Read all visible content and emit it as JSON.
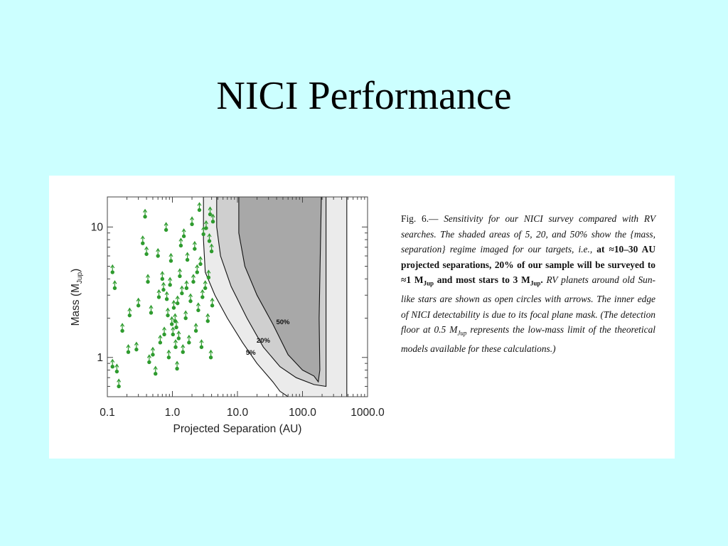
{
  "title": "NICI Performance",
  "caption": {
    "lead": "Fig.  6.— ",
    "s1": "Sensitivity for our NICI survey compared with RV searches. The shaded areas of 5, 20, and 50% show the {mass, separation} regime imaged for our targets, i.e.,",
    "s2": " at ≈10–30 AU projected separations, 20% of our sample will be surveyed to ≈1 M",
    "sub1": "Jup",
    "s3": " and most stars to 3 M",
    "sub2": "Jup",
    "s4": ". ",
    "s5": "RV planets around old Sun-like stars are shown as open circles with arrows. The inner edge of NICI detectability is due to its focal plane mask. (The detection floor at 0.5 M",
    "sub3": "Jup",
    "s6": " represents the low-mass limit of the theoretical models available for these calculations.)"
  },
  "chart_data": {
    "type": "scatter",
    "xlabel": "Projected Separation (AU)",
    "ylabel_main": "Mass (M",
    "ylabel_sub": "Jup",
    "ylabel_end": ")",
    "xscale": "log",
    "yscale": "log",
    "xlim": [
      0.1,
      1000.0
    ],
    "ylim": [
      0.5,
      17
    ],
    "xticks": [
      {
        "value": 0.1,
        "label": "0.1"
      },
      {
        "value": 1.0,
        "label": "1.0"
      },
      {
        "value": 10.0,
        "label": "10.0"
      },
      {
        "value": 100.0,
        "label": "100.0"
      },
      {
        "value": 1000.0,
        "label": "1000.0"
      }
    ],
    "yticks": [
      {
        "value": 1,
        "label": "1"
      },
      {
        "value": 10,
        "label": "10"
      }
    ],
    "contours": [
      {
        "label": "5%",
        "fill": "#ebebeb",
        "label_at": [
          16,
          1.05
        ],
        "points": [
          [
            3.0,
            17
          ],
          [
            3.0,
            8
          ],
          [
            3.2,
            4.5
          ],
          [
            4.5,
            3.0
          ],
          [
            7,
            2.0
          ],
          [
            12,
            1.3
          ],
          [
            20,
            0.9
          ],
          [
            35,
            0.65
          ],
          [
            45,
            0.55
          ],
          [
            60,
            0.5
          ],
          [
            480,
            0.5
          ],
          [
            480,
            17
          ]
        ]
      },
      {
        "label": "20%",
        "fill": "#cfcfcf",
        "label_at": [
          25,
          1.3
        ],
        "points": [
          [
            4.8,
            17
          ],
          [
            4.8,
            10
          ],
          [
            5.5,
            6
          ],
          [
            8,
            3.5
          ],
          [
            14,
            2.0
          ],
          [
            25,
            1.2
          ],
          [
            45,
            0.85
          ],
          [
            80,
            0.7
          ],
          [
            150,
            0.62
          ],
          [
            230,
            0.6
          ],
          [
            230,
            17
          ]
        ]
      },
      {
        "label": "50%",
        "fill": "#a8a8a8",
        "label_at": [
          50,
          1.8
        ],
        "points": [
          [
            10.5,
            17
          ],
          [
            10.5,
            9
          ],
          [
            13,
            5
          ],
          [
            20,
            3
          ],
          [
            35,
            1.8
          ],
          [
            60,
            1.05
          ],
          [
            100,
            0.8
          ],
          [
            150,
            0.72
          ],
          [
            175,
            0.65
          ],
          [
            185,
            0.8
          ],
          [
            180,
            2
          ],
          [
            195,
            17
          ]
        ]
      }
    ],
    "series": [
      {
        "points": [
          [
            0.12,
            4.5
          ],
          [
            0.13,
            3.4
          ],
          [
            0.12,
            0.85
          ],
          [
            0.14,
            0.78
          ],
          [
            0.15,
            0.6
          ],
          [
            0.17,
            1.6
          ],
          [
            0.22,
            2.1
          ],
          [
            0.21,
            1.1
          ],
          [
            0.28,
            1.15
          ],
          [
            0.3,
            2.5
          ],
          [
            0.38,
            12
          ],
          [
            0.35,
            7.5
          ],
          [
            0.4,
            6.2
          ],
          [
            0.42,
            3.8
          ],
          [
            0.47,
            2.2
          ],
          [
            0.5,
            1.05
          ],
          [
            0.44,
            0.92
          ],
          [
            0.55,
            0.75
          ],
          [
            0.6,
            6.0
          ],
          [
            0.62,
            2.9
          ],
          [
            0.65,
            1.3
          ],
          [
            0.7,
            4.0
          ],
          [
            0.73,
            3.3
          ],
          [
            0.75,
            1.5
          ],
          [
            0.8,
            9.5
          ],
          [
            0.82,
            2.8
          ],
          [
            0.85,
            2.1
          ],
          [
            0.88,
            1.0
          ],
          [
            0.92,
            3.6
          ],
          [
            0.95,
            5.5
          ],
          [
            0.98,
            1.8
          ],
          [
            1.02,
            1.5
          ],
          [
            1.05,
            2.4
          ],
          [
            1.1,
            1.9
          ],
          [
            1.12,
            1.2
          ],
          [
            1.15,
            1.7
          ],
          [
            1.18,
            0.82
          ],
          [
            1.2,
            2.6
          ],
          [
            1.25,
            1.4
          ],
          [
            1.3,
            4.2
          ],
          [
            1.35,
            7.2
          ],
          [
            1.4,
            3.1
          ],
          [
            1.45,
            1.1
          ],
          [
            1.5,
            8.5
          ],
          [
            1.6,
            2.0
          ],
          [
            1.65,
            3.4
          ],
          [
            1.7,
            5.6
          ],
          [
            1.8,
            1.3
          ],
          [
            1.9,
            2.7
          ],
          [
            2.0,
            10.5
          ],
          [
            2.1,
            3.8
          ],
          [
            2.2,
            6.8
          ],
          [
            2.3,
            1.6
          ],
          [
            2.4,
            4.5
          ],
          [
            2.5,
            2.3
          ],
          [
            2.6,
            13.5
          ],
          [
            2.7,
            5.2
          ],
          [
            2.8,
            1.2
          ],
          [
            2.9,
            2.9
          ],
          [
            3.0,
            8.8
          ],
          [
            3.2,
            3.4
          ],
          [
            3.3,
            9.8
          ],
          [
            3.5,
            1.9
          ],
          [
            3.6,
            4.1
          ],
          [
            3.7,
            7.8
          ],
          [
            3.8,
            12.5
          ],
          [
            3.9,
            1.0
          ],
          [
            4.0,
            6.5
          ],
          [
            4.1,
            2.5
          ],
          [
            4.2,
            11
          ]
        ]
      }
    ]
  }
}
